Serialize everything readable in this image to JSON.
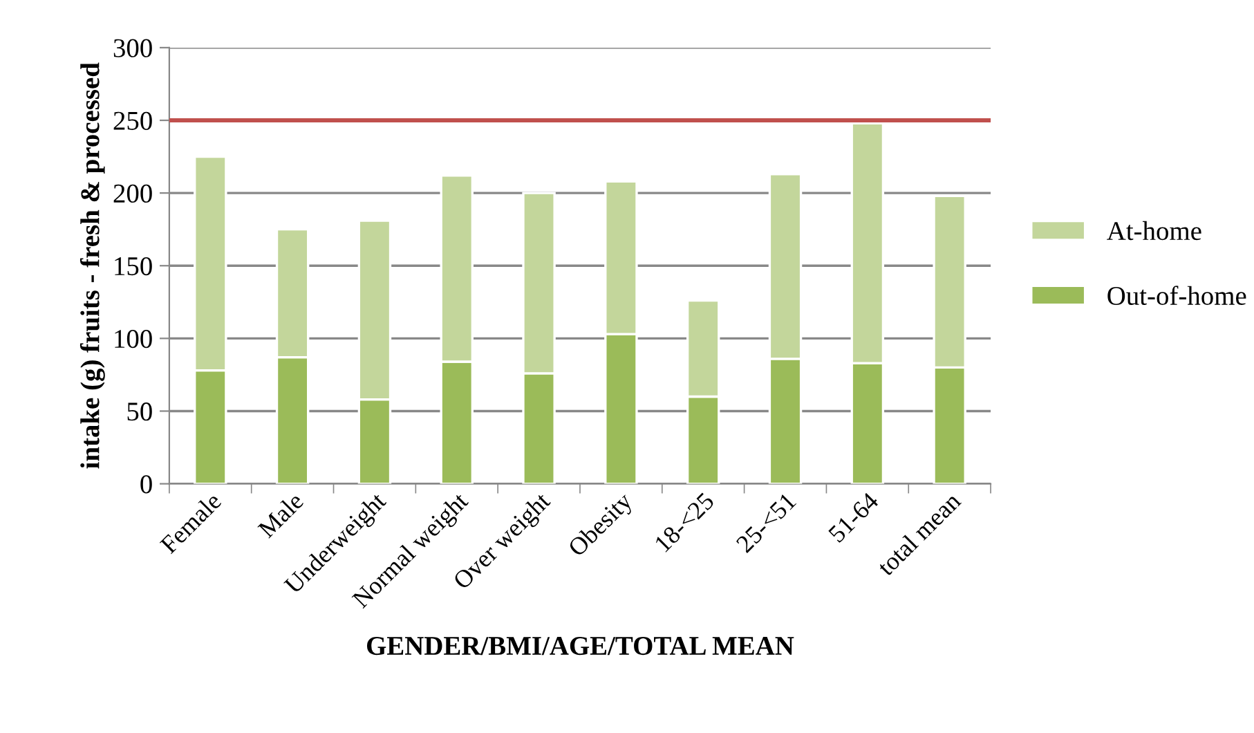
{
  "chart_data": {
    "type": "bar",
    "stacked": true,
    "xlabel": "GENDER/BMI/AGE/TOTAL MEAN",
    "ylabel": "intake (g) fruits - fresh & processed",
    "categories": [
      "Female",
      "Male",
      "Underweight",
      "Normal weight",
      "Over weight",
      "Obesity",
      "18-<25",
      "25-<51",
      "51-64",
      "total mean"
    ],
    "series": [
      {
        "name": "Out-of-home",
        "color": "#9bbb59",
        "values": [
          78,
          87,
          58,
          84,
          76,
          103,
          60,
          86,
          83,
          80
        ]
      },
      {
        "name": "At-home",
        "color": "#c3d69b",
        "values": [
          147,
          88,
          123,
          128,
          124,
          105,
          66,
          127,
          165,
          118
        ]
      }
    ],
    "ylim": [
      0,
      300
    ],
    "yticks": [
      0,
      50,
      100,
      150,
      200,
      250,
      300
    ],
    "grid": "y",
    "legend": "right",
    "ref_lines": [
      {
        "axis": "y",
        "value": 250,
        "color": "#c0504d",
        "line_style": "solid"
      }
    ]
  }
}
